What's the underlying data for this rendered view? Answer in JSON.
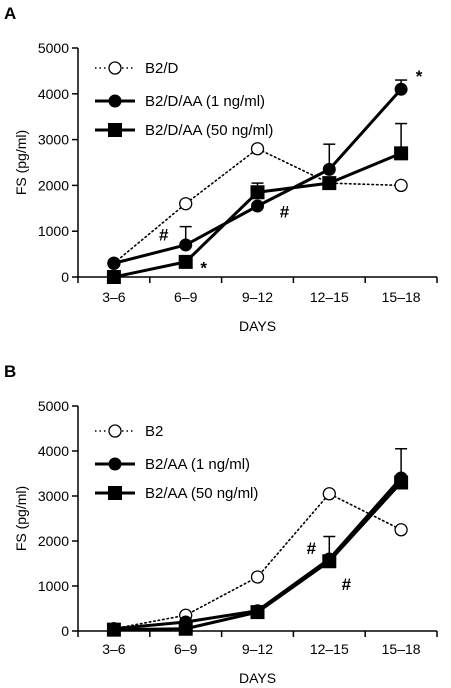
{
  "chart_data": [
    {
      "type": "line",
      "panel_label": "A",
      "categories": [
        "3–6",
        "6–9",
        "9–12",
        "12–15",
        "15–18"
      ],
      "xlabel": "DAYS",
      "ylabel": "FS (pg/ml)",
      "ylim": [
        0,
        5000
      ],
      "yticks": [
        0,
        1000,
        2000,
        3000,
        4000,
        5000
      ],
      "legend_position": "top-left",
      "grid": false,
      "series": [
        {
          "name": "B2/D",
          "marker": "open-circle",
          "style": "dotted",
          "values": [
            300,
            1600,
            2800,
            2050,
            2000
          ],
          "errors": [
            0,
            0,
            0,
            0,
            0
          ]
        },
        {
          "name": "B2/D/AA (1 ng/ml)",
          "marker": "filled-circle",
          "style": "solid",
          "values": [
            300,
            700,
            1550,
            2350,
            4100
          ],
          "errors": [
            0,
            400,
            0,
            550,
            200
          ]
        },
        {
          "name": "B2/D/AA (50 ng/ml)",
          "marker": "filled-square",
          "style": "solid",
          "values": [
            0,
            330,
            1850,
            2050,
            2700
          ],
          "errors": [
            0,
            0,
            200,
            0,
            650
          ]
        }
      ],
      "annotations": [
        {
          "text": "#",
          "x": "6–9",
          "y": 950
        },
        {
          "text": "*",
          "x": "6–9",
          "y": 300
        },
        {
          "text": "#",
          "x": "9–12",
          "y": 1300
        },
        {
          "text": "*",
          "x": "15–18",
          "y": 4300
        }
      ]
    },
    {
      "type": "line",
      "panel_label": "B",
      "categories": [
        "3–6",
        "6–9",
        "9–12",
        "12–15",
        "15–18"
      ],
      "xlabel": "DAYS",
      "ylabel": "FS (pg/ml)",
      "ylim": [
        0,
        5000
      ],
      "yticks": [
        0,
        1000,
        2000,
        3000,
        4000,
        5000
      ],
      "legend_position": "top-left",
      "grid": false,
      "series": [
        {
          "name": "B2",
          "marker": "open-circle",
          "style": "dotted",
          "values": [
            50,
            350,
            1200,
            3050,
            2250
          ],
          "errors": [
            0,
            0,
            0,
            0,
            0
          ]
        },
        {
          "name": "B2/AA (1 ng/ml)",
          "marker": "filled-circle",
          "style": "solid",
          "values": [
            50,
            200,
            450,
            1600,
            3400
          ],
          "errors": [
            0,
            0,
            0,
            500,
            650
          ]
        },
        {
          "name": "B2/AA (50 ng/ml)",
          "marker": "filled-square",
          "style": "solid",
          "values": [
            30,
            50,
            420,
            1550,
            3300
          ],
          "errors": [
            0,
            0,
            0,
            0,
            0
          ]
        }
      ],
      "annotations": [
        {
          "text": "#",
          "x": "12–15",
          "y": 1800
        },
        {
          "text": "#",
          "x": "12–15",
          "y": 1250
        }
      ]
    }
  ]
}
